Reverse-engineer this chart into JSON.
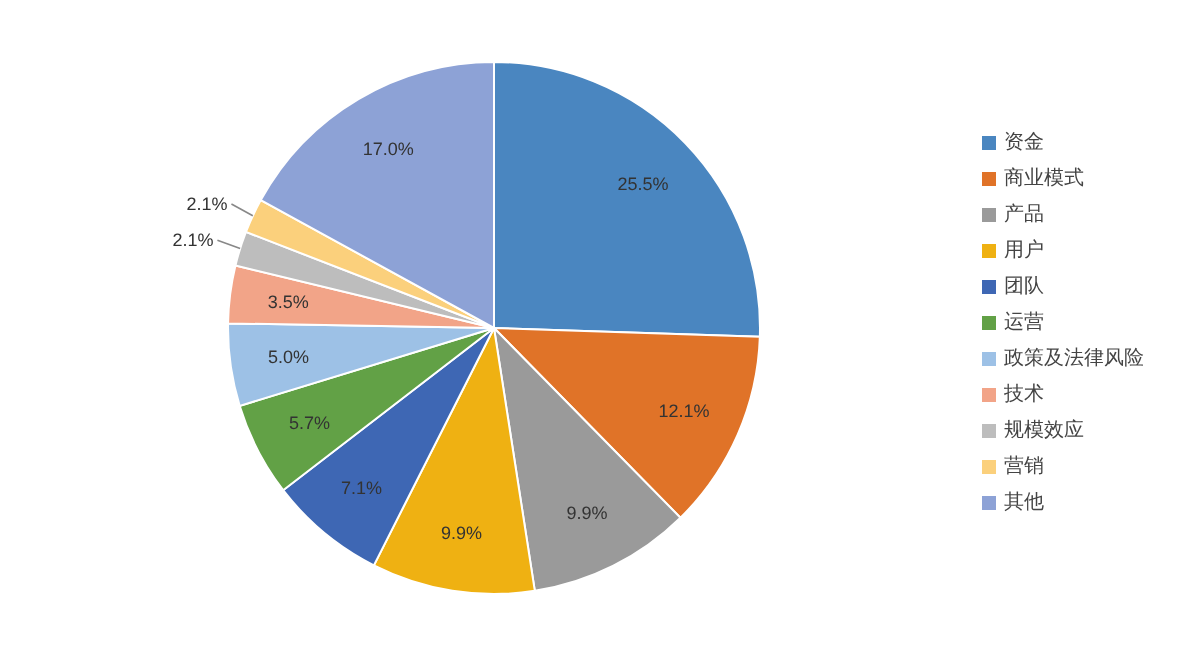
{
  "chart_data": {
    "type": "pie",
    "categories": [
      "资金",
      "商业模式",
      "产品",
      "用户",
      "团队",
      "运营",
      "政策及法律风险",
      "技术",
      "规模效应",
      "营销",
      "其他"
    ],
    "values": [
      25.5,
      12.1,
      9.9,
      9.9,
      7.1,
      5.7,
      5.0,
      3.5,
      2.1,
      2.1,
      17.0
    ],
    "value_labels": [
      "25.5%",
      "12.1%",
      "9.9%",
      "9.9%",
      "7.1%",
      "5.7%",
      "5.0%",
      "3.5%",
      "2.1%",
      "2.1%",
      "17.0%"
    ],
    "colors": [
      "#4a86c0",
      "#e07328",
      "#9a9a9a",
      "#efb112",
      "#3e67b4",
      "#62a146",
      "#9dc1e6",
      "#f2a488",
      "#bdbdbd",
      "#fbd07c",
      "#8da2d6"
    ],
    "legend": "right"
  }
}
